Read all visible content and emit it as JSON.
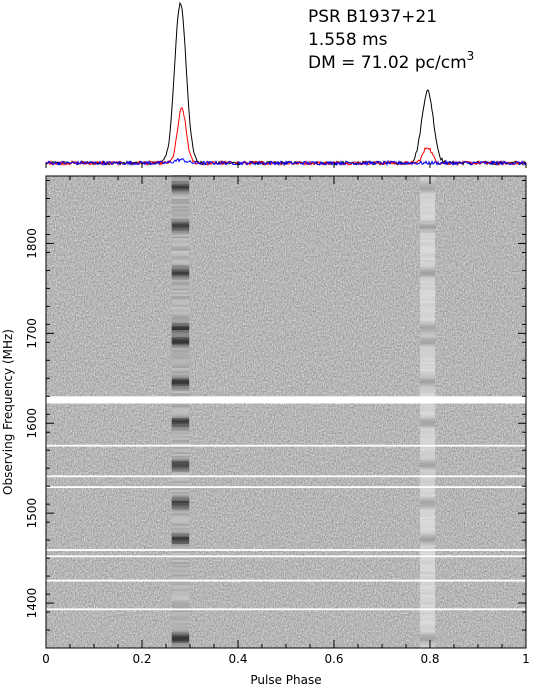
{
  "annotations": {
    "line1": "PSR B1937+21",
    "line2": "1.558 ms",
    "line3_prefix": "DM = 71.02 pc/cm",
    "line3_sup": "3"
  },
  "chart_data": [
    {
      "type": "line",
      "description_panel": "integrated pulse profile",
      "x_range": [
        0,
        1
      ],
      "series": [
        {
          "color": "#000000",
          "peaks": [
            {
              "phase": 0.28,
              "amplitude": 1.0,
              "width": 0.012
            },
            {
              "phase": 0.795,
              "amplitude": 0.45,
              "width": 0.012
            }
          ]
        },
        {
          "color": "#ff0000",
          "peaks": [
            {
              "phase": 0.283,
              "amplitude": 0.34,
              "width": 0.009
            },
            {
              "phase": 0.795,
              "amplitude": 0.1,
              "width": 0.009
            }
          ]
        },
        {
          "color": "#0000ff",
          "peaks": [
            {
              "phase": 0.28,
              "amplitude": 0.02,
              "width": 0.012
            }
          ]
        }
      ]
    },
    {
      "type": "heatmap",
      "xlabel": "Pulse Phase",
      "ylabel": "Observing Frequency (MHz)",
      "xlim": [
        0,
        1
      ],
      "ylim": [
        1350,
        1875
      ],
      "x_ticks": [
        0,
        0.2,
        0.4,
        0.6,
        0.8,
        1
      ],
      "x_tick_labels": [
        "0",
        "0.2",
        "0.4",
        "0.6",
        "0.8",
        "1"
      ],
      "y_ticks": [
        1400,
        1500,
        1600,
        1700,
        1800
      ],
      "y_tick_labels": [
        "1400",
        "1500",
        "1600",
        "1700",
        "1800"
      ],
      "colormap": "grayscale (white = low, black = high)",
      "pulse_components": [
        {
          "phase": 0.28,
          "width": 0.014,
          "intensity": 0.55
        },
        {
          "phase": 0.795,
          "width": 0.012,
          "intensity": 0.22
        }
      ],
      "bright_frequencies_mhz": [
        1862,
        1818,
        1767,
        1705,
        1690,
        1645,
        1600,
        1553,
        1510,
        1470,
        1360
      ],
      "flagged_bands_mhz": [
        [
          1622,
          1630
        ],
        [
          1574,
          1576
        ],
        [
          1540,
          1542
        ],
        [
          1528,
          1530
        ],
        [
          1458,
          1460
        ],
        [
          1451,
          1453
        ],
        [
          1424,
          1426
        ],
        [
          1392,
          1394
        ]
      ]
    }
  ]
}
